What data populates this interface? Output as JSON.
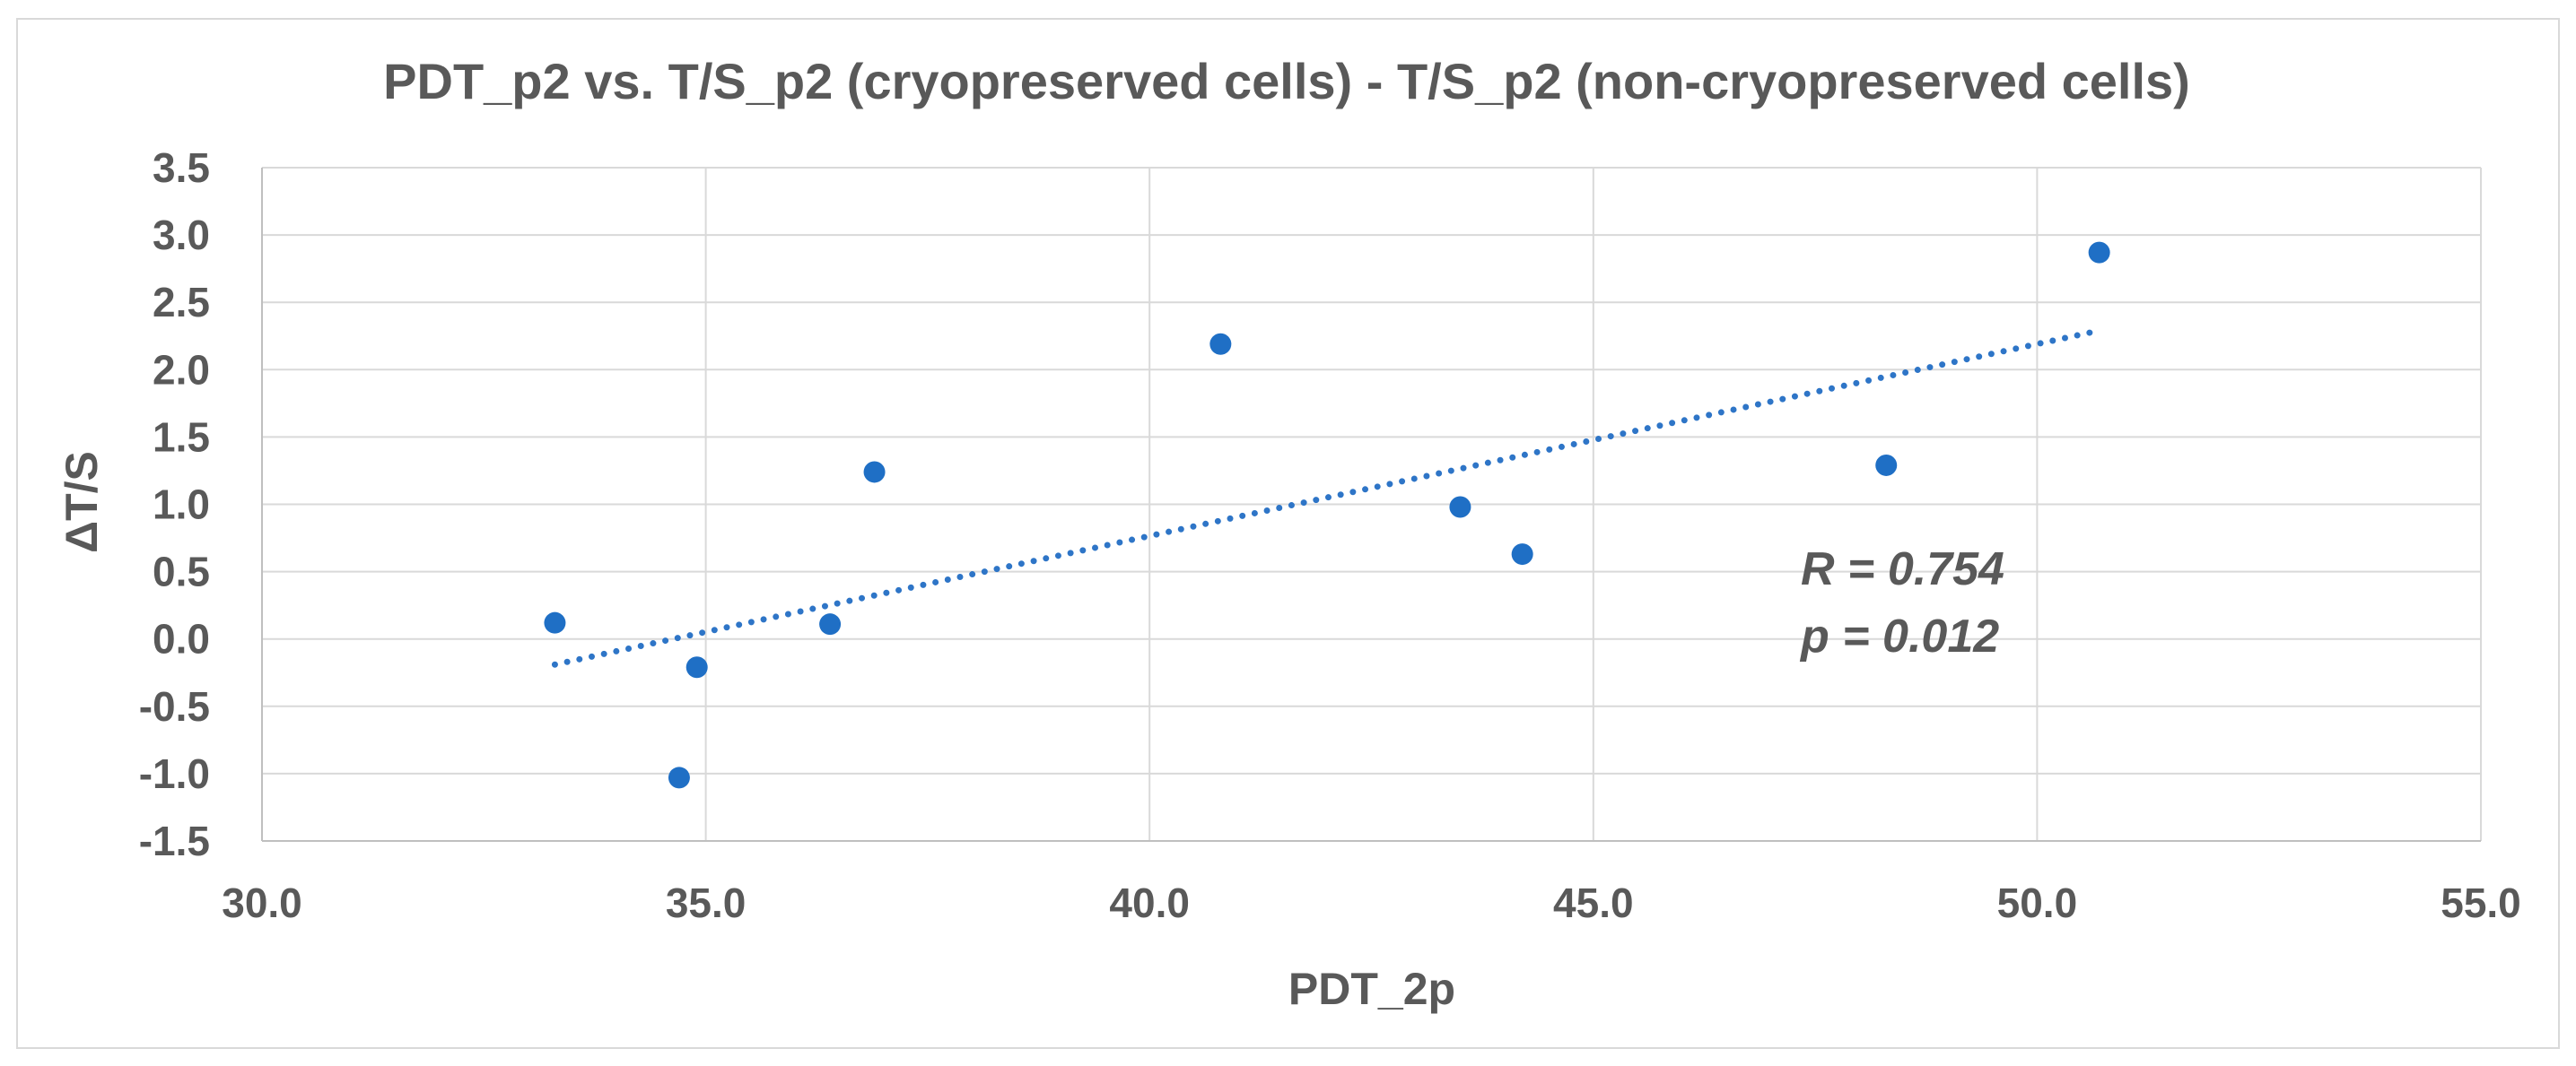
{
  "chart_data": {
    "type": "scatter",
    "title": "PDT_p2 vs. T/S_p2 (cryopreserved cells) - T/S_p2 (non-cryopreserved cells)",
    "xlabel": "PDT_2p",
    "ylabel": "ΔT/S",
    "xlim": [
      30.0,
      55.0
    ],
    "ylim": [
      -1.5,
      3.5
    ],
    "x_ticks": [
      "30.0",
      "35.0",
      "40.0",
      "45.0",
      "50.0",
      "55.0"
    ],
    "y_ticks": [
      "3.5",
      "3.0",
      "2.5",
      "2.0",
      "1.5",
      "1.0",
      "0.5",
      "0.0",
      "-0.5",
      "-1.0",
      "-1.5"
    ],
    "grid": true,
    "series": [
      {
        "name": "ΔT/S",
        "color": "#1f6fc5",
        "x": [
          33.3,
          34.7,
          34.9,
          36.4,
          36.9,
          40.8,
          43.5,
          44.2,
          48.3,
          50.7
        ],
        "y": [
          0.12,
          -1.03,
          -0.21,
          0.11,
          1.24,
          2.19,
          0.98,
          0.63,
          1.29,
          2.87
        ]
      }
    ],
    "trendline": {
      "type": "linear",
      "style": "dotted",
      "color": "#2e75c7",
      "x_start": 33.3,
      "x_end": 50.7,
      "y_start": -0.19,
      "y_end": 2.29
    },
    "annotations": [
      "R = 0.754",
      "p = 0.012"
    ]
  }
}
